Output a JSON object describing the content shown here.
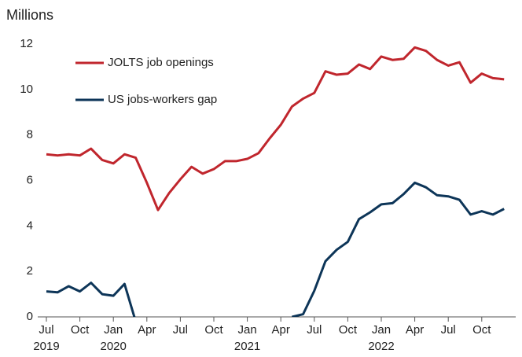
{
  "chart_data": {
    "type": "line",
    "ylabel": "Millions",
    "categories": [
      "Jul",
      null,
      null,
      "Oct",
      null,
      null,
      "Jan",
      null,
      null,
      "Apr",
      null,
      null,
      "Jul",
      null,
      null,
      "Oct",
      null,
      null,
      "Jan",
      null,
      null,
      "Apr",
      null,
      null,
      "Jul",
      null,
      null,
      "Oct",
      null,
      null,
      "Jan",
      null,
      null,
      "Apr",
      null,
      null,
      "Jul",
      null,
      null,
      "Oct",
      null,
      null
    ],
    "years": [
      "2019",
      null,
      null,
      null,
      null,
      null,
      "2020",
      null,
      null,
      null,
      null,
      null,
      null,
      null,
      null,
      null,
      null,
      null,
      "2021",
      null,
      null,
      null,
      null,
      null,
      null,
      null,
      null,
      null,
      null,
      null,
      "2022",
      null,
      null,
      null,
      null,
      null,
      null,
      null,
      null,
      null,
      null,
      null
    ],
    "series": [
      {
        "name": "JOLTS job openings",
        "color": "#c0262d",
        "values": [
          7.15,
          7.1,
          7.15,
          7.1,
          7.4,
          6.9,
          6.75,
          7.15,
          7.0,
          5.9,
          4.7,
          5.45,
          6.05,
          6.6,
          6.3,
          6.5,
          6.85,
          6.85,
          6.95,
          7.2,
          7.85,
          8.45,
          9.25,
          9.6,
          9.85,
          10.8,
          10.65,
          10.7,
          11.1,
          10.9,
          11.45,
          11.3,
          11.35,
          11.85,
          11.7,
          11.3,
          11.05,
          11.2,
          10.3,
          10.7,
          10.5,
          10.45
        ]
      },
      {
        "name": "US jobs-workers gap",
        "color": "#0d3558",
        "values": [
          1.12,
          1.08,
          1.35,
          1.12,
          1.5,
          1.0,
          0.93,
          1.45,
          -0.2,
          null,
          null,
          null,
          null,
          null,
          null,
          null,
          null,
          null,
          null,
          null,
          null,
          null,
          0.0,
          0.12,
          1.15,
          2.45,
          2.95,
          3.3,
          4.3,
          4.6,
          4.95,
          5.0,
          5.4,
          5.9,
          5.7,
          5.35,
          5.3,
          5.15,
          4.5,
          4.65,
          4.5,
          4.75
        ]
      }
    ],
    "ylim": [
      0,
      12
    ],
    "yticks": [
      0,
      2,
      4,
      6,
      8,
      10,
      12
    ],
    "legend": "upper left"
  }
}
